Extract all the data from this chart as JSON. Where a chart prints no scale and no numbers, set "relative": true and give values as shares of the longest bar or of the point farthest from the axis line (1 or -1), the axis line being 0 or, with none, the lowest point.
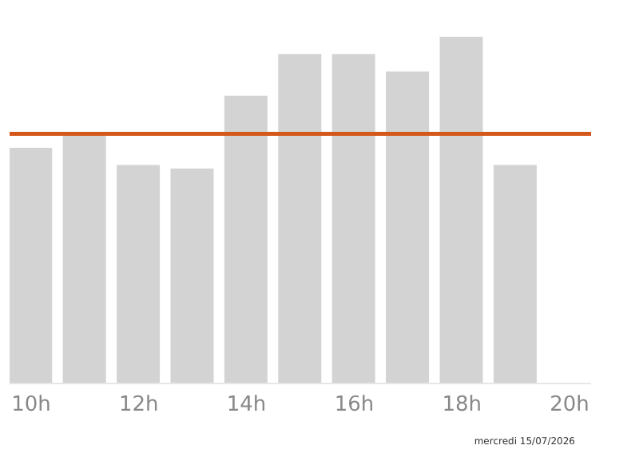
{
  "chart_data": {
    "type": "bar",
    "relative": true,
    "x": [
      10,
      11,
      12,
      13,
      14,
      15,
      16,
      17,
      18,
      19
    ],
    "values": [
      0.68,
      0.72,
      0.63,
      0.62,
      0.83,
      0.95,
      0.95,
      0.9,
      1,
      0.63
    ],
    "color": "#d3d3d3",
    "xlim": [
      9.6,
      20.4
    ],
    "xticks": [
      {
        "value": 10,
        "label": "10h"
      },
      {
        "value": 12,
        "label": "12h"
      },
      {
        "value": 14,
        "label": "14h"
      },
      {
        "value": 16,
        "label": "16h"
      },
      {
        "value": 18,
        "label": "18h"
      },
      {
        "value": 20,
        "label": "20h"
      }
    ],
    "ref_lines": [
      {
        "axis": "y",
        "value": 0.72,
        "color": "#d4581c"
      }
    ],
    "annotations": [
      "mercredi 15/07/2026"
    ],
    "grid": false,
    "legend": false
  }
}
